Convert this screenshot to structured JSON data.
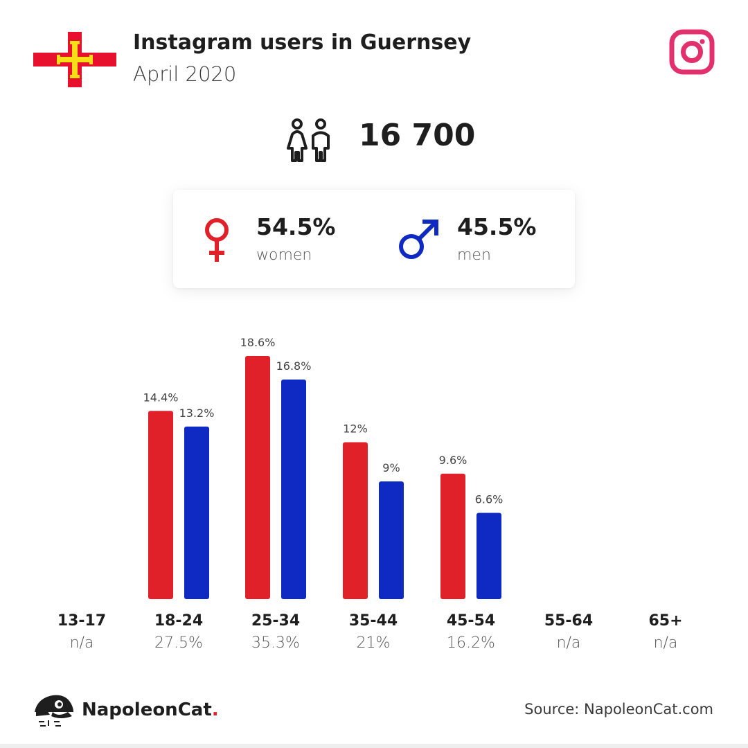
{
  "header": {
    "title": "Instagram users in Guernsey",
    "subtitle": "April 2020",
    "platform_icon": "instagram-icon",
    "flag_icon": "guernsey-flag-icon"
  },
  "total": {
    "value": "16 700",
    "icon": "users-icon"
  },
  "gender": {
    "women": {
      "pct": "54.5%",
      "label": "women",
      "color": "#e0212a",
      "icon": "female-icon"
    },
    "men": {
      "pct": "45.5%",
      "label": "men",
      "color": "#0f2ac2",
      "icon": "male-icon"
    }
  },
  "age_groups": [
    {
      "label": "13-17",
      "share": "n/a"
    },
    {
      "label": "18-24",
      "share": "27.5%"
    },
    {
      "label": "25-34",
      "share": "35.3%"
    },
    {
      "label": "35-44",
      "share": "21%"
    },
    {
      "label": "45-54",
      "share": "16.2%"
    },
    {
      "label": "55-64",
      "share": "n/a"
    },
    {
      "label": "65+",
      "share": "n/a"
    }
  ],
  "chart_data": {
    "type": "bar",
    "categories": [
      "13-17",
      "18-24",
      "25-34",
      "35-44",
      "45-54",
      "55-64",
      "65+"
    ],
    "series": [
      {
        "name": "women",
        "color": "#e0212a",
        "values": [
          null,
          14.4,
          18.6,
          12,
          9.6,
          null,
          null
        ],
        "labels": [
          "",
          "14.4%",
          "18.6%",
          "12%",
          "9.6%",
          "",
          ""
        ]
      },
      {
        "name": "men",
        "color": "#0f2ac2",
        "values": [
          null,
          13.2,
          16.8,
          9,
          6.6,
          null,
          null
        ],
        "labels": [
          "",
          "13.2%",
          "16.8%",
          "9%",
          "6.6%",
          "",
          ""
        ]
      }
    ],
    "title": "",
    "xlabel": "",
    "ylabel": "",
    "ylim": [
      0,
      20
    ],
    "grid": false
  },
  "footer": {
    "brand": "NapoleonCat",
    "brand_dot": ".",
    "source": "Source: NapoleonCat.com",
    "brand_icon": "napoleoncat-logo-icon"
  }
}
